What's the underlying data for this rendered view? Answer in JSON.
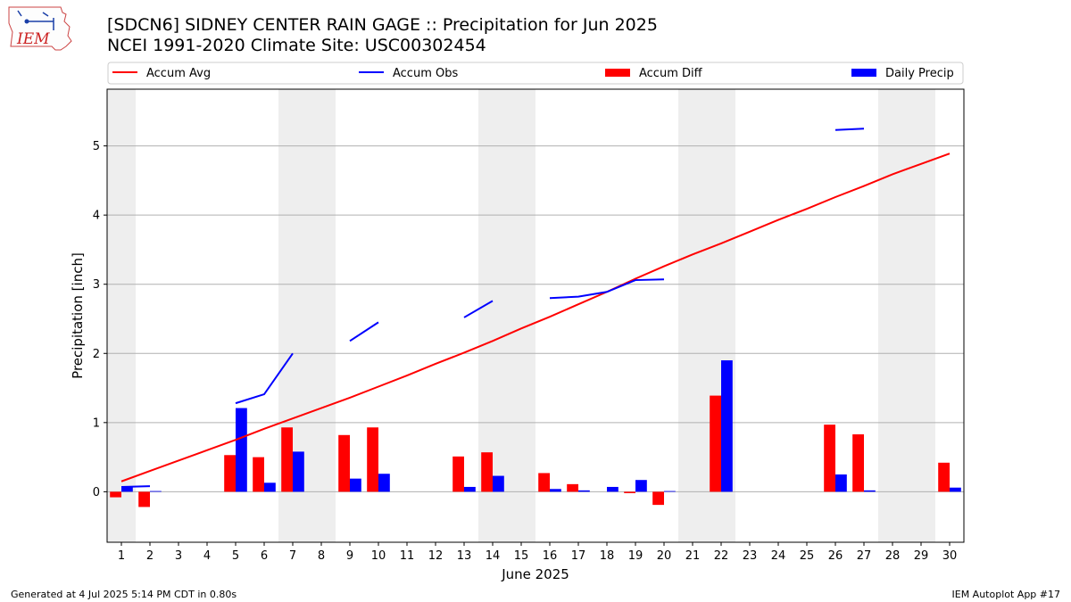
{
  "header": {
    "title_line1": "[SDCN6] SIDNEY CENTER RAIN GAGE :: Precipitation for Jun 2025",
    "title_line2": "NCEI 1991-2020 Climate Site: USC00302454",
    "logo_text": "IEM"
  },
  "footer": {
    "generated": "Generated at 4 Jul 2025 5:14 PM CDT in 0.80s",
    "app": "IEM Autoplot App #17"
  },
  "colors": {
    "avg": "#ff0000",
    "obs": "#0000ff",
    "diff": "#ff0000",
    "daily": "#0000ff",
    "weekend": "#eeeeee",
    "grid": "#b0b0b0"
  },
  "chart_data": {
    "type": "bar",
    "xlabel": "June 2025",
    "ylabel": "Precipitation [inch]",
    "xlim": [
      0.5,
      30.5
    ],
    "ylim": [
      -0.73,
      5.82
    ],
    "yticks": [
      0,
      1,
      2,
      3,
      4,
      5
    ],
    "grid": true,
    "legend_position": "top",
    "legend": [
      "Accum Avg",
      "Accum Obs",
      "Accum Diff",
      "Daily Precip"
    ],
    "days": [
      1,
      2,
      3,
      4,
      5,
      6,
      7,
      8,
      9,
      10,
      11,
      12,
      13,
      14,
      15,
      16,
      17,
      18,
      19,
      20,
      21,
      22,
      23,
      24,
      25,
      26,
      27,
      28,
      29,
      30
    ],
    "weekend_days": [
      1,
      7,
      8,
      14,
      15,
      21,
      22,
      28,
      29
    ],
    "series": [
      {
        "name": "Accum Avg",
        "kind": "line",
        "values": [
          0.15,
          0.3,
          0.45,
          0.6,
          0.75,
          0.91,
          1.06,
          1.21,
          1.36,
          1.52,
          1.68,
          1.85,
          2.01,
          2.18,
          2.36,
          2.53,
          2.71,
          2.89,
          3.08,
          3.26,
          3.43,
          3.59,
          3.76,
          3.93,
          4.09,
          4.26,
          4.42,
          4.59,
          4.74,
          4.89
        ]
      },
      {
        "name": "Accum Obs",
        "kind": "line",
        "values": [
          0.07,
          0.08,
          null,
          null,
          1.28,
          1.41,
          2.0,
          null,
          2.18,
          2.45,
          null,
          null,
          2.52,
          2.76,
          null,
          2.8,
          2.82,
          2.89,
          3.06,
          3.07,
          null,
          null,
          null,
          null,
          null,
          5.23,
          5.25,
          null,
          null,
          null
        ]
      },
      {
        "name": "Accum Diff",
        "kind": "bar",
        "values": [
          -0.08,
          -0.22,
          0,
          0,
          0.53,
          0.5,
          0.93,
          0,
          0.82,
          0.93,
          0,
          0,
          0.51,
          0.57,
          0,
          0.27,
          0.11,
          0,
          -0.02,
          -0.19,
          0,
          1.39,
          0,
          0,
          0,
          0.97,
          0.83,
          0,
          0,
          0.42
        ]
      },
      {
        "name": "Daily Precip",
        "kind": "bar",
        "values": [
          0.07,
          0.01,
          0,
          0,
          1.21,
          0.13,
          0.58,
          0,
          0.19,
          0.26,
          0,
          0,
          0.07,
          0.23,
          0,
          0.04,
          0.02,
          0.07,
          0.17,
          0.01,
          0,
          1.9,
          0,
          0,
          0,
          0.25,
          0.02,
          0,
          0,
          0.06
        ]
      }
    ]
  }
}
